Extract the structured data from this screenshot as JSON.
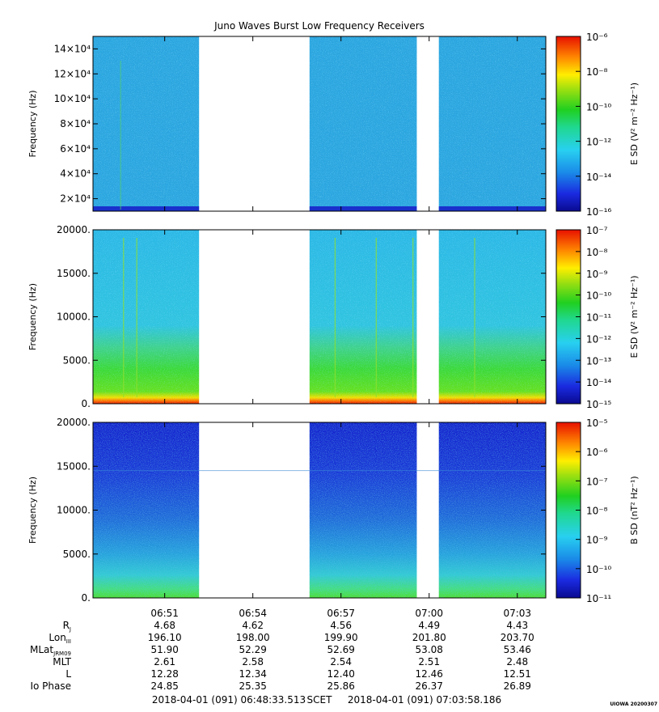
{
  "title": "Juno Waves Burst Low Frequency Receivers",
  "stamp": "UIOWA 20200307",
  "colors": {
    "blue_bg": "#2aa8e0",
    "speckle_light": "#45c8ef",
    "speckle_dark": "#1e88d6",
    "deep_blue": "#1a2ad8",
    "green": "#22cc22",
    "yellow": "#ffee00",
    "orange": "#ff8800",
    "red": "#ee1100"
  },
  "chart_data": [
    {
      "type": "heatmap",
      "panel": "top",
      "title": "Juno Waves Burst Low Frequency Receivers",
      "ylabel": "Frequency (Hz)",
      "ytick_labels": [
        "2×10⁴",
        "4×10⁴",
        "6×10⁴",
        "8×10⁴",
        "10×10⁴",
        "12×10⁴",
        "14×10⁴"
      ],
      "yticks": [
        20000,
        40000,
        60000,
        80000,
        100000,
        120000,
        140000
      ],
      "ylim": [
        10000,
        150000
      ],
      "colorbar_label": "E SD (V² m⁻² Hz⁻¹)",
      "colorbar_tick_labels": [
        "10⁻⁶",
        "10⁻⁸",
        "10⁻¹⁰",
        "10⁻¹²",
        "10⁻¹⁴",
        "10⁻¹⁶"
      ],
      "colorbar_range": [
        1e-16,
        1e-06
      ],
      "data_segments_min": [
        [
          48.56,
          52.17
        ],
        [
          55.93,
          59.58
        ],
        [
          60.33,
          64.02
        ]
      ]
    },
    {
      "type": "heatmap",
      "panel": "middle",
      "ylabel": "Frequency (Hz)",
      "ytick_labels": [
        "0.",
        "5000.",
        "10000.",
        "15000.",
        "20000."
      ],
      "yticks": [
        0,
        5000,
        10000,
        15000,
        20000
      ],
      "ylim": [
        0,
        20000
      ],
      "colorbar_label": "E SD (V² m⁻² Hz⁻¹)",
      "colorbar_tick_labels": [
        "10⁻⁷",
        "10⁻⁸",
        "10⁻⁹",
        "10⁻¹⁰",
        "10⁻¹¹",
        "10⁻¹²",
        "10⁻¹³",
        "10⁻¹⁴",
        "10⁻¹⁵"
      ],
      "colorbar_range": [
        1e-15,
        1e-07
      ],
      "data_segments_min": [
        [
          48.56,
          52.17
        ],
        [
          55.93,
          59.58
        ],
        [
          60.33,
          64.02
        ]
      ]
    },
    {
      "type": "heatmap",
      "panel": "bottom",
      "ylabel": "Frequency (Hz)",
      "ytick_labels": [
        "0.",
        "5000.",
        "10000.",
        "15000.",
        "20000."
      ],
      "yticks": [
        0,
        5000,
        10000,
        15000,
        20000
      ],
      "ylim": [
        0,
        20000
      ],
      "colorbar_label": "B SD (nT² Hz⁻¹)",
      "colorbar_tick_labels": [
        "10⁻⁵",
        "10⁻⁶",
        "10⁻⁷",
        "10⁻⁸",
        "10⁻⁹",
        "10⁻¹⁰",
        "10⁻¹¹"
      ],
      "colorbar_range": [
        1e-11,
        3e-05
      ],
      "data_segments_min": [
        [
          48.56,
          52.17
        ],
        [
          55.93,
          59.58
        ],
        [
          60.33,
          64.02
        ]
      ]
    }
  ],
  "x_axis": {
    "tick_labels": [
      "06:51",
      "06:54",
      "06:57",
      "07:00",
      "07:03"
    ],
    "major_ticks_min": [
      51,
      54,
      57,
      60,
      63
    ],
    "xlim_min": [
      48.56,
      63.97
    ]
  },
  "ephemeris": {
    "rows": [
      {
        "label_main": "R",
        "label_sub": "J",
        "values": [
          "4.68",
          "4.62",
          "4.56",
          "4.49",
          "4.43"
        ]
      },
      {
        "label_main": "Lon",
        "label_sub": "III",
        "values": [
          "196.10",
          "198.00",
          "199.90",
          "201.80",
          "203.70"
        ]
      },
      {
        "label_main": "MLat",
        "label_sub": "JRM09",
        "values": [
          "51.90",
          "52.29",
          "52.69",
          "53.08",
          "53.46"
        ]
      },
      {
        "label_main": "MLT",
        "label_sub": "",
        "values": [
          "2.61",
          "2.58",
          "2.54",
          "2.51",
          "2.48"
        ]
      },
      {
        "label_main": "L",
        "label_sub": "",
        "values": [
          "12.28",
          "12.34",
          "12.40",
          "12.46",
          "12.51"
        ]
      },
      {
        "label_main": "Io Phase",
        "label_sub": "",
        "values": [
          "24.85",
          "25.35",
          "25.86",
          "26.37",
          "26.89"
        ]
      }
    ]
  },
  "time_range": {
    "start": "2018-04-01 (091) 06:48:33.513",
    "frame": "SCET",
    "end": "2018-04-01 (091) 07:03:58.186"
  }
}
